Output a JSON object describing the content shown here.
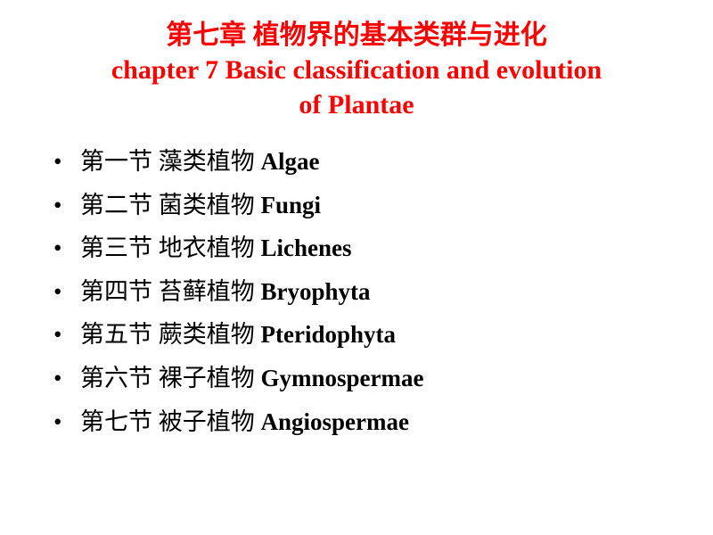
{
  "title": {
    "chinese": "第七章 植物界的基本类群与进化",
    "english_line1": "chapter 7 Basic classification and evolution",
    "english_line2": "of Plantae",
    "color": "#ff0000",
    "fontsize": 30,
    "fontweight": "bold"
  },
  "sections": [
    {
      "cn": "第一节 藻类植物 ",
      "en": "Algae"
    },
    {
      "cn": "第二节 菌类植物 ",
      "en": "Fungi"
    },
    {
      "cn": "第三节 地衣植物 ",
      "en": "Lichenes"
    },
    {
      "cn": "第四节 苔藓植物 ",
      "en": "Bryophyta"
    },
    {
      "cn": "第五节 蕨类植物 ",
      "en": "Pteridophyta"
    },
    {
      "cn": "第六节 裸子植物 ",
      "en": "Gymnospermae"
    },
    {
      "cn": "第七节 被子植物 ",
      "en": "Angiospermae"
    }
  ],
  "styling": {
    "background_color": "#ffffff",
    "text_color": "#000000",
    "section_fontsize": 27,
    "bullet_style": "disc",
    "line_height": 1.8,
    "font_family_cn": "SimSun",
    "font_family_en": "Times New Roman"
  }
}
